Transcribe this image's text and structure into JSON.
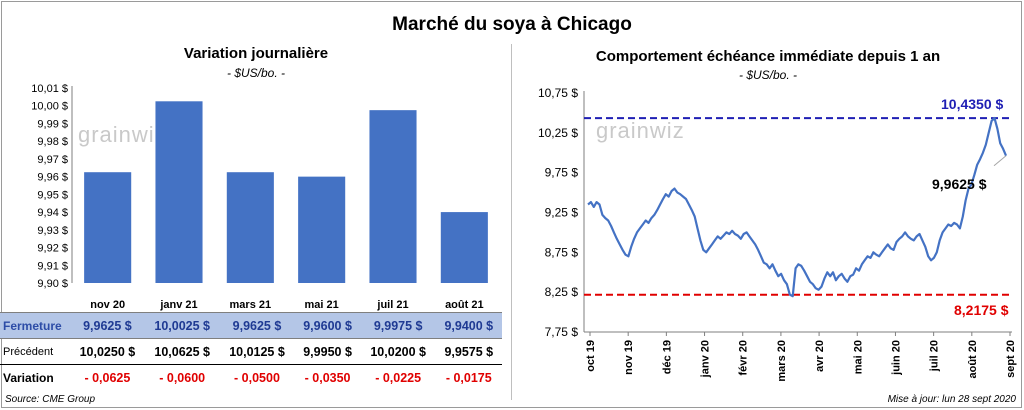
{
  "title": "Marché du soya à Chicago",
  "left_panel": {
    "title": "Variation  journalière",
    "unit": "- $US/bo. -"
  },
  "right_panel": {
    "title": "Comportement  échéance immédiate depuis 1 an",
    "unit": "- $US/bo. -"
  },
  "watermark": "grainwiz",
  "colors": {
    "bar": "#4472c4",
    "line": "#4472c4",
    "high": "#1f1fb4",
    "low": "#e00000",
    "table_band": "#b4c6e7"
  },
  "table": {
    "rows": [
      {
        "label": "Fermeture",
        "cells": [
          "9,9625  $",
          "10,0025  $",
          "9,9625  $",
          "9,9600  $",
          "9,9975  $",
          "9,9400  $"
        ]
      },
      {
        "label": "Précédent",
        "cells": [
          "10,0250  $",
          "10,0625  $",
          "10,0125  $",
          "9,9950  $",
          "10,0200  $",
          "9,9575  $"
        ]
      },
      {
        "label": "Variation",
        "cells": [
          "- 0,0625",
          "- 0,0600",
          "- 0,0500",
          "- 0,0350",
          "- 0,0225",
          "- 0,0175"
        ]
      }
    ]
  },
  "footer": {
    "source": "Source: CME Group",
    "update": "Mise à jour: lun 28 sept 2020"
  },
  "chart_data": [
    {
      "type": "bar",
      "title": "Variation  journalière",
      "subtitle": "- $US/bo. -",
      "categories": [
        "nov 20",
        "janv 21",
        "mars 21",
        "mai 21",
        "juil 21",
        "août 21"
      ],
      "values": [
        9.9625,
        10.0025,
        9.9625,
        9.96,
        9.9975,
        9.94
      ],
      "ylim": [
        9.9,
        10.01
      ],
      "yticks": [
        "9,90 $",
        "9,91 $",
        "9,92 $",
        "9,93 $",
        "9,94 $",
        "9,95 $",
        "9,96 $",
        "9,97 $",
        "9,98 $",
        "9,99 $",
        "10,00 $",
        "10,01 $"
      ],
      "grid": false
    },
    {
      "type": "line",
      "title": "Comportement  échéance immédiate depuis 1 an",
      "subtitle": "- $US/bo. -",
      "ylim": [
        7.75,
        10.75
      ],
      "yticks": [
        "7,75 $",
        "8,25 $",
        "8,75 $",
        "9,25 $",
        "9,75 $",
        "10,25 $",
        "10,75 $"
      ],
      "xticks": [
        "oct 19",
        "nov 19",
        "déc 19",
        "janv 20",
        "févr 20",
        "mars 20",
        "avr 20",
        "mai 20",
        "juin 20",
        "juil 20",
        "août 20",
        "sept 20"
      ],
      "series": [
        {
          "values": [
            9.35,
            9.38,
            9.32,
            9.38,
            9.35,
            9.22,
            9.18,
            9.15,
            9.08,
            9.0,
            8.92,
            8.85,
            8.78,
            8.72,
            8.7,
            8.82,
            8.92,
            9.0,
            9.05,
            9.1,
            9.15,
            9.12,
            9.18,
            9.22,
            9.28,
            9.35,
            9.42,
            9.48,
            9.45,
            9.52,
            9.55,
            9.5,
            9.48,
            9.45,
            9.42,
            9.35,
            9.28,
            9.2,
            9.05,
            8.9,
            8.78,
            8.75,
            8.8,
            8.85,
            8.9,
            8.95,
            8.92,
            8.96,
            9.0,
            8.98,
            9.02,
            8.98,
            8.96,
            8.92,
            8.98,
            9.0,
            8.95,
            8.9,
            8.85,
            8.78,
            8.7,
            8.62,
            8.6,
            8.55,
            8.6,
            8.52,
            8.45,
            8.48,
            8.4,
            8.35,
            8.22,
            8.2,
            8.55,
            8.6,
            8.58,
            8.52,
            8.45,
            8.38,
            8.35,
            8.3,
            8.28,
            8.32,
            8.42,
            8.5,
            8.45,
            8.5,
            8.4,
            8.45,
            8.48,
            8.42,
            8.38,
            8.45,
            8.47,
            8.55,
            8.52,
            8.6,
            8.65,
            8.7,
            8.68,
            8.75,
            8.72,
            8.7,
            8.75,
            8.8,
            8.85,
            8.8,
            8.78,
            8.88,
            8.92,
            8.95,
            9.0,
            8.95,
            8.92,
            8.9,
            8.95,
            8.98,
            8.9,
            8.82,
            8.7,
            8.65,
            8.68,
            8.75,
            8.9,
            9.0,
            9.05,
            9.1,
            9.08,
            9.12,
            9.1,
            9.05,
            9.2,
            9.4,
            9.55,
            9.6,
            9.72,
            9.85,
            9.92,
            10.0,
            10.1,
            10.25,
            10.4,
            10.435,
            10.3,
            10.12,
            10.05,
            9.9625
          ],
          "hlines": [
            {
              "label": "10,4350  $",
              "value": 10.435,
              "color": "#1f1fb4"
            },
            {
              "label": "8,2175  $",
              "value": 8.2175,
              "color": "#e00000"
            }
          ],
          "last_label": "9,9625  $"
        }
      ],
      "grid": false
    }
  ]
}
